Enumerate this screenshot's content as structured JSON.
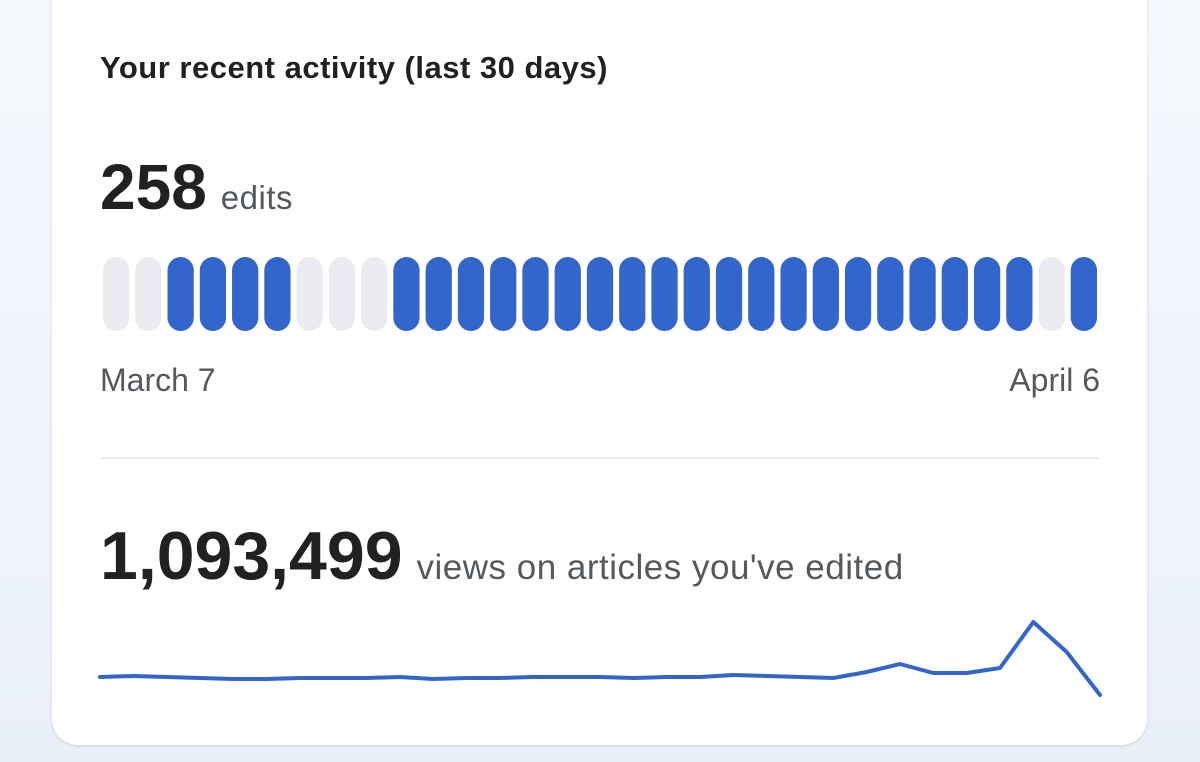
{
  "header": {
    "title": "Your recent activity (last 30 days)"
  },
  "edits": {
    "count": "258",
    "unit": "edits",
    "active_days": [
      false,
      false,
      true,
      true,
      true,
      true,
      false,
      false,
      false,
      true,
      true,
      true,
      true,
      true,
      true,
      true,
      true,
      true,
      true,
      true,
      true,
      true,
      true,
      true,
      true,
      true,
      true,
      true,
      true,
      false,
      true
    ],
    "start_label": "March 7",
    "end_label": "April 6",
    "active_color": "#3366cc",
    "inactive_color": "#eaecf0"
  },
  "views": {
    "count": "1,093,499",
    "unit": "views on articles you've edited",
    "trend": [
      23,
      24,
      23,
      22,
      21,
      21,
      22,
      22,
      22,
      23,
      21,
      22,
      22,
      23,
      23,
      23,
      22,
      23,
      23,
      25,
      24,
      23,
      22,
      28,
      36,
      27,
      27,
      32,
      78,
      48,
      5
    ],
    "color": "#3366cc"
  }
}
